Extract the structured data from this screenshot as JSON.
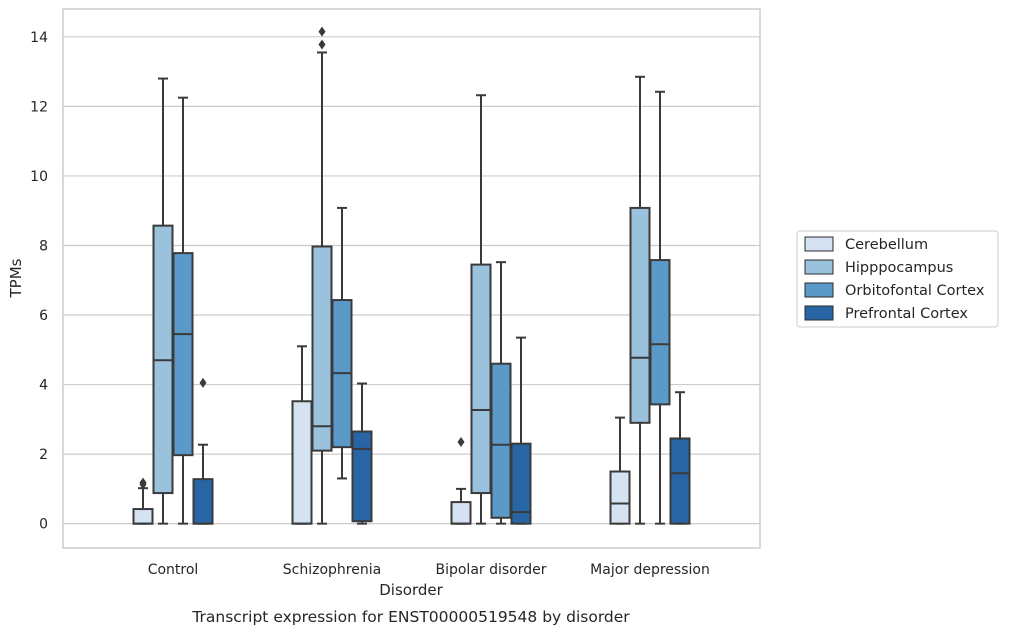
{
  "chart_data": {
    "type": "boxplot",
    "title": "",
    "caption": "Transcript expression for ENST00000519548 by disorder",
    "xlabel": "Disorder",
    "ylabel": "TPMs",
    "ylim": [
      -0.7,
      14.8
    ],
    "yticks": [
      0,
      2,
      4,
      6,
      8,
      10,
      12,
      14
    ],
    "grid": "horizontal",
    "legend_position": "right",
    "categories": [
      "Control",
      "Schizophrenia",
      "Bipolar disorder",
      "Major depression"
    ],
    "series": [
      {
        "name": "Cerebellum",
        "color": "#d4e2f1",
        "boxes": [
          {
            "min": 0,
            "q1": 0,
            "median": 0,
            "q3": 0.42,
            "max": 1.02,
            "outliers": [
              1.13,
              1.18
            ]
          },
          {
            "min": 0,
            "q1": 0,
            "median": 0,
            "q3": 3.52,
            "max": 5.1,
            "outliers": []
          },
          {
            "min": 0,
            "q1": 0,
            "median": 0,
            "q3": 0.62,
            "max": 1.0,
            "outliers": [
              2.35
            ]
          },
          {
            "min": 0,
            "q1": 0,
            "median": 0.58,
            "q3": 1.5,
            "max": 3.05,
            "outliers": []
          }
        ]
      },
      {
        "name": "Hipppocampus",
        "color": "#9bc2dc",
        "boxes": [
          {
            "min": 0,
            "q1": 0.88,
            "median": 4.7,
            "q3": 8.57,
            "max": 12.8,
            "outliers": []
          },
          {
            "min": 0,
            "q1": 2.1,
            "median": 2.8,
            "q3": 7.97,
            "max": 13.55,
            "outliers": [
              13.78,
              14.15
            ]
          },
          {
            "min": 0,
            "q1": 0.88,
            "median": 3.27,
            "q3": 7.45,
            "max": 12.32,
            "outliers": []
          },
          {
            "min": 0,
            "q1": 2.9,
            "median": 4.77,
            "q3": 9.08,
            "max": 12.85,
            "outliers": []
          }
        ]
      },
      {
        "name": "Orbitofontal Cortex",
        "color": "#5b9ac8",
        "boxes": [
          {
            "min": 0,
            "q1": 1.97,
            "median": 5.45,
            "q3": 7.78,
            "max": 12.25,
            "outliers": []
          },
          {
            "min": 1.3,
            "q1": 2.2,
            "median": 4.33,
            "q3": 6.43,
            "max": 9.08,
            "outliers": []
          },
          {
            "min": 0,
            "q1": 0.17,
            "median": 2.27,
            "q3": 4.6,
            "max": 7.52,
            "outliers": []
          },
          {
            "min": 0,
            "q1": 3.43,
            "median": 5.16,
            "q3": 7.58,
            "max": 12.42,
            "outliers": []
          }
        ]
      },
      {
        "name": "Prefrontal Cortex",
        "color": "#2865a5",
        "boxes": [
          {
            "min": 0,
            "q1": 0,
            "median": 0,
            "q3": 1.28,
            "max": 2.27,
            "outliers": [
              4.05
            ]
          },
          {
            "min": 0,
            "q1": 0.07,
            "median": 2.15,
            "q3": 2.65,
            "max": 4.03,
            "outliers": []
          },
          {
            "min": 0,
            "q1": 0,
            "median": 0.33,
            "q3": 2.3,
            "max": 5.35,
            "outliers": []
          },
          {
            "min": 0,
            "q1": 0,
            "median": 1.45,
            "q3": 2.45,
            "max": 3.78,
            "outliers": []
          }
        ]
      }
    ]
  }
}
